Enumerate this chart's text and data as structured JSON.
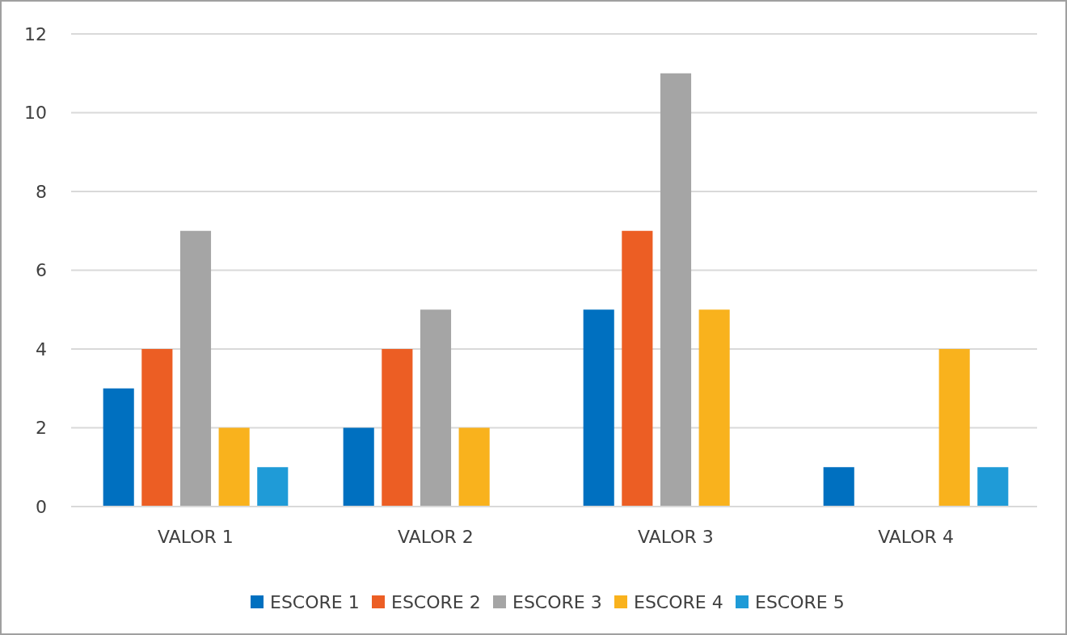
{
  "chart_data": {
    "type": "bar",
    "categories": [
      "VALOR 1",
      "VALOR 2",
      "VALOR 3",
      "VALOR 4"
    ],
    "series": [
      {
        "name": "ESCORE 1",
        "color": "#0070c0",
        "values": [
          3,
          2,
          5,
          1
        ]
      },
      {
        "name": "ESCORE 2",
        "color": "#ec5e24",
        "values": [
          4,
          4,
          7,
          0
        ]
      },
      {
        "name": "ESCORE 3",
        "color": "#a5a5a5",
        "values": [
          7,
          5,
          11,
          0
        ]
      },
      {
        "name": "ESCORE 4",
        "color": "#f9b21d",
        "values": [
          2,
          2,
          5,
          4
        ]
      },
      {
        "name": "ESCORE 5",
        "color": "#1f9bd7",
        "values": [
          1,
          0,
          0,
          1
        ]
      }
    ],
    "ylim": [
      0,
      12
    ],
    "yticks": [
      0,
      2,
      4,
      6,
      8,
      10,
      12
    ],
    "grid": "y",
    "legend": "bottom"
  }
}
